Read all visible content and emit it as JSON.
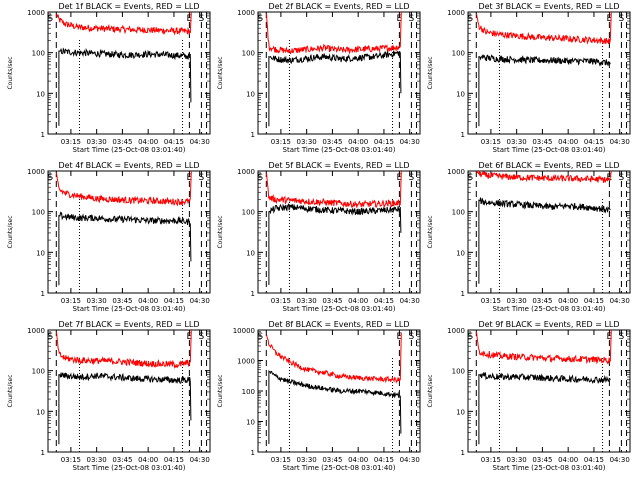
{
  "colors": {
    "events": "#000000",
    "lld": "#ff0000",
    "axis": "#000000",
    "background": "#ffffff"
  },
  "shared": {
    "xlabel": "Start Time (25-Oct-08 03:01:40)",
    "ylabel": "Counts/sec",
    "x_ticks": [
      "03:15",
      "03:30",
      "03:45",
      "04:00",
      "04:15",
      "04:30"
    ],
    "x_tick_minutes": [
      15,
      30,
      45,
      60,
      75,
      90
    ],
    "x_range_minutes": [
      1.67,
      96
    ],
    "y_scale": "log",
    "event_markers": [
      "S",
      "E",
      "S"
    ],
    "event_marker_minutes": [
      3,
      84,
      91
    ],
    "dashed_line_minutes": [
      6.5,
      84,
      91,
      94
    ],
    "dotted_line_minutes": [
      20,
      80
    ]
  },
  "chart_data": [
    {
      "type": "line",
      "title": "Det 1f BLACK = Events, RED = LLD",
      "ylim": [
        1,
        1000
      ],
      "y_ticks": [
        "1",
        "10",
        "100",
        "1000"
      ],
      "x": [
        6.6,
        8,
        12,
        20,
        30,
        40,
        50,
        60,
        70,
        78,
        84.5
      ],
      "series": [
        {
          "name": "Events",
          "values": [
            null,
            110,
            105,
            100,
            95,
            90,
            88,
            92,
            88,
            85,
            80
          ],
          "dip_to": 6
        },
        {
          "name": "LLD",
          "values": [
            900,
            650,
            500,
            420,
            400,
            380,
            370,
            360,
            350,
            340,
            330
          ],
          "rise_to": 1000
        }
      ]
    },
    {
      "type": "line",
      "title": "Det 2f BLACK = Events, RED = LLD",
      "ylim": [
        1,
        1000
      ],
      "y_ticks": [
        "1",
        "10",
        "100",
        "1000"
      ],
      "x": [
        6.6,
        8,
        12,
        20,
        30,
        40,
        50,
        60,
        70,
        78,
        84.5
      ],
      "series": [
        {
          "name": "Events",
          "values": [
            null,
            80,
            70,
            65,
            72,
            80,
            70,
            75,
            80,
            90,
            100
          ],
          "dip_to": 10
        },
        {
          "name": "LLD",
          "values": [
            900,
            140,
            120,
            110,
            120,
            130,
            115,
            120,
            125,
            130,
            140
          ],
          "rise_to": 1000
        }
      ]
    },
    {
      "type": "line",
      "title": "Det 3f BLACK = Events, RED = LLD",
      "ylim": [
        1,
        1000
      ],
      "y_ticks": [
        "1",
        "10",
        "100",
        "1000"
      ],
      "x": [
        6.6,
        8,
        12,
        20,
        30,
        40,
        50,
        60,
        70,
        78,
        84.5
      ],
      "series": [
        {
          "name": "Events",
          "values": [
            null,
            80,
            75,
            70,
            68,
            65,
            65,
            62,
            62,
            60,
            55
          ],
          "dip_to": null
        },
        {
          "name": "LLD",
          "values": [
            900,
            450,
            320,
            280,
            260,
            240,
            230,
            220,
            210,
            200,
            190
          ],
          "rise_to": 1000
        }
      ]
    },
    {
      "type": "line",
      "title": "Det 4f BLACK = Events, RED = LLD",
      "ylim": [
        1,
        1000
      ],
      "y_ticks": [
        "1",
        "10",
        "100",
        "1000"
      ],
      "x": [
        6.6,
        8,
        12,
        20,
        30,
        40,
        50,
        60,
        70,
        78,
        84.5
      ],
      "series": [
        {
          "name": "Events",
          "values": [
            null,
            80,
            75,
            70,
            70,
            65,
            65,
            60,
            60,
            60,
            55
          ],
          "dip_to": 6
        },
        {
          "name": "LLD",
          "values": [
            900,
            350,
            280,
            240,
            210,
            200,
            190,
            185,
            180,
            175,
            180
          ],
          "rise_to": 1000
        }
      ]
    },
    {
      "type": "line",
      "title": "Det 5f BLACK = Events, RED = LLD",
      "ylim": [
        1,
        1000
      ],
      "y_ticks": [
        "1",
        "10",
        "100",
        "1000"
      ],
      "x": [
        6.6,
        8,
        12,
        20,
        30,
        40,
        50,
        60,
        70,
        78,
        84.5
      ],
      "series": [
        {
          "name": "Events",
          "values": [
            null,
            100,
            120,
            130,
            120,
            110,
            105,
            100,
            105,
            110,
            115
          ],
          "dip_to": 30
        },
        {
          "name": "LLD",
          "values": [
            900,
            220,
            200,
            190,
            180,
            170,
            160,
            150,
            155,
            160,
            165
          ],
          "rise_to": 1000
        }
      ]
    },
    {
      "type": "line",
      "title": "Det 6f BLACK = Events, RED = LLD",
      "ylim": [
        1,
        1000
      ],
      "y_ticks": [
        "1",
        "10",
        "100",
        "1000"
      ],
      "x": [
        6.6,
        8,
        12,
        20,
        30,
        40,
        50,
        60,
        70,
        78,
        84.5
      ],
      "series": [
        {
          "name": "Events",
          "values": [
            null,
            190,
            170,
            160,
            150,
            140,
            130,
            140,
            130,
            120,
            110
          ],
          "dip_to": null
        },
        {
          "name": "LLD",
          "values": [
            1000,
            850,
            780,
            740,
            700,
            680,
            660,
            650,
            640,
            620,
            600
          ],
          "rise_to": 1000
        }
      ]
    },
    {
      "type": "line",
      "title": "Det 7f BLACK = Events, RED = LLD",
      "ylim": [
        1,
        1000
      ],
      "y_ticks": [
        "1",
        "10",
        "100",
        "1000"
      ],
      "x": [
        6.6,
        8,
        12,
        20,
        30,
        40,
        50,
        60,
        70,
        78,
        84.5
      ],
      "series": [
        {
          "name": "Events",
          "values": [
            null,
            80,
            75,
            70,
            75,
            70,
            65,
            62,
            60,
            58,
            60
          ],
          "dip_to": 6
        },
        {
          "name": "LLD",
          "values": [
            900,
            250,
            200,
            180,
            175,
            170,
            160,
            150,
            145,
            140,
            160
          ],
          "rise_to": 1000
        }
      ]
    },
    {
      "type": "line",
      "title": "Det 8f BLACK = Events, RED = LLD",
      "ylim": [
        1,
        10000
      ],
      "y_ticks": [
        "1",
        "10",
        "100",
        "1000",
        "10000"
      ],
      "x": [
        6.6,
        8,
        12,
        20,
        30,
        40,
        50,
        60,
        70,
        78,
        84.5
      ],
      "series": [
        {
          "name": "Events",
          "values": [
            null,
            450,
            300,
            200,
            150,
            120,
            100,
            100,
            90,
            80,
            70
          ],
          "dip_to": 4
        },
        {
          "name": "LLD",
          "values": [
            7000,
            3500,
            1800,
            900,
            500,
            400,
            300,
            270,
            250,
            240,
            230
          ],
          "rise_to": 8000
        }
      ]
    },
    {
      "type": "line",
      "title": "Det 9f BLACK = Events, RED = LLD",
      "ylim": [
        1,
        1000
      ],
      "y_ticks": [
        "1",
        "10",
        "100",
        "1000"
      ],
      "x": [
        6.6,
        8,
        12,
        20,
        30,
        40,
        50,
        60,
        70,
        78,
        84.5
      ],
      "series": [
        {
          "name": "Events",
          "values": [
            null,
            80,
            75,
            70,
            70,
            68,
            65,
            62,
            62,
            60,
            60
          ],
          "dip_to": null
        },
        {
          "name": "LLD",
          "values": [
            900,
            300,
            260,
            230,
            220,
            210,
            200,
            195,
            190,
            185,
            180
          ],
          "rise_to": 1000
        }
      ]
    }
  ]
}
